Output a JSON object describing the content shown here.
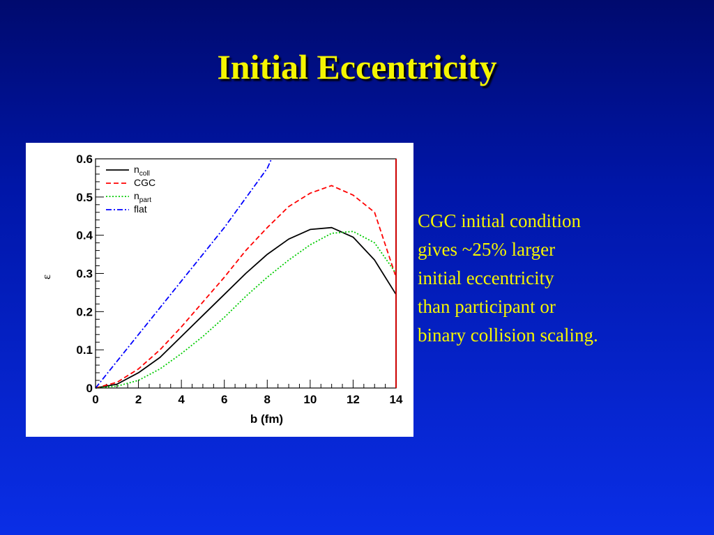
{
  "slide": {
    "title": "Initial Eccentricity"
  },
  "note": {
    "lines": [
      "CGC initial condition",
      "gives ~25% larger",
      "initial eccentricity",
      "than participant or",
      "binary collision scaling."
    ]
  },
  "chart_data": {
    "type": "line",
    "title": "",
    "xlabel": "b (fm)",
    "ylabel": "ε",
    "xlim": [
      0,
      14
    ],
    "ylim": [
      0,
      0.6
    ],
    "x_ticks": [
      "0",
      "2",
      "4",
      "6",
      "8",
      "10",
      "12",
      "14"
    ],
    "y_ticks": [
      "0",
      "0.1",
      "0.2",
      "0.3",
      "0.4",
      "0.5",
      "0.6"
    ],
    "grid": false,
    "legend_position": "top-left",
    "series": [
      {
        "name": "n_coll",
        "label_main": "n",
        "label_sub": "coll",
        "color": "#000000",
        "dash": "solid",
        "x": [
          0,
          1,
          2,
          3,
          4,
          5,
          6,
          7,
          8,
          9,
          10,
          11,
          12,
          13,
          14
        ],
        "y": [
          0,
          0.01,
          0.04,
          0.08,
          0.135,
          0.19,
          0.245,
          0.3,
          0.35,
          0.39,
          0.415,
          0.42,
          0.395,
          0.335,
          0.245
        ]
      },
      {
        "name": "CGC",
        "label_main": "CGC",
        "label_sub": "",
        "color": "#ff0000",
        "dash": "dashed",
        "x": [
          0,
          1,
          2,
          3,
          4,
          5,
          6,
          7,
          8,
          9,
          10,
          11,
          12,
          13,
          14
        ],
        "y": [
          0,
          0.015,
          0.05,
          0.1,
          0.16,
          0.225,
          0.29,
          0.36,
          0.42,
          0.475,
          0.51,
          0.53,
          0.505,
          0.46,
          0.29
        ]
      },
      {
        "name": "n_part",
        "label_main": "n",
        "label_sub": "part",
        "color": "#00cc00",
        "dash": "dotted",
        "x": [
          0,
          1,
          2,
          3,
          4,
          5,
          6,
          7,
          8,
          9,
          10,
          11,
          12,
          13,
          14
        ],
        "y": [
          0,
          0.005,
          0.02,
          0.05,
          0.09,
          0.135,
          0.185,
          0.24,
          0.29,
          0.335,
          0.375,
          0.405,
          0.41,
          0.38,
          0.3
        ]
      },
      {
        "name": "flat",
        "label_main": "flat",
        "label_sub": "",
        "color": "#0000ff",
        "dash": "dashdot",
        "x": [
          0,
          2,
          4,
          6,
          8,
          8.2
        ],
        "y": [
          0,
          0.14,
          0.28,
          0.42,
          0.575,
          0.6
        ]
      }
    ]
  }
}
